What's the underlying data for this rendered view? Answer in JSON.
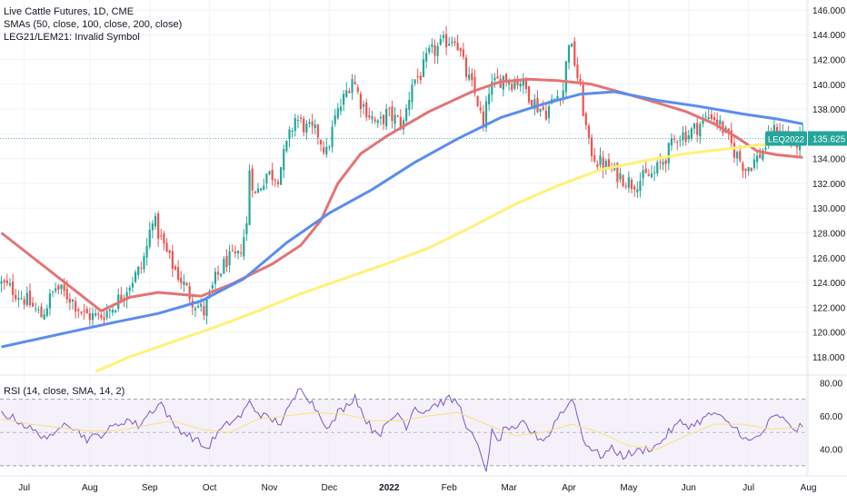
{
  "legend": {
    "title": "Live Cattle Futures, 1D, CME",
    "sma_line": "SMAs (50, close, 100, close, 200, close)",
    "spread_line": "LEG21/LEM21: Invalid Symbol"
  },
  "rsi_legend": "RSI (14, close, SMA, 14, 2)",
  "colors": {
    "up": "#26a69a",
    "down": "#ef5350",
    "sma50": "#e57373",
    "sma100": "#5b8def",
    "sma200": "#fff176",
    "rsi": "#7e57c2",
    "rsi_ma": "#f7e27c",
    "rsi_band": "#ede7f6"
  },
  "chart_data": [
    {
      "type": "candlestick",
      "symbol": "LEQ2022",
      "last_price": "135.625",
      "y_ticks": [
        "146.000",
        "144.000",
        "142.000",
        "140.000",
        "138.000",
        "136.000",
        "134.000",
        "132.000",
        "130.000",
        "128.000",
        "126.000",
        "124.000",
        "122.000",
        "120.000",
        "118.000"
      ],
      "ylim": [
        116.6,
        146.8
      ],
      "x_ticks": [
        "Jul",
        "Aug",
        "Sep",
        "Oct",
        "Nov",
        "Dec",
        "2022",
        "Feb",
        "Mar",
        "Apr",
        "May",
        "Jun",
        "Jul",
        "Aug"
      ],
      "x_tick_bars": [
        8,
        31,
        52,
        73,
        94,
        115,
        136,
        157,
        178,
        199,
        220,
        241,
        262,
        283
      ],
      "bar_count": 283,
      "series": [
        {
          "name": "SMA 50",
          "points": [
            [
              0,
              128.0
            ],
            [
              35,
              121.7
            ],
            [
              45,
              122.8
            ],
            [
              55,
              123.2
            ],
            [
              70,
              122.9
            ],
            [
              80,
              123.8
            ],
            [
              95,
              125.5
            ],
            [
              105,
              127.0
            ],
            [
              112,
              129.0
            ],
            [
              118,
              132.0
            ],
            [
              126,
              134.4
            ],
            [
              135,
              135.8
            ],
            [
              150,
              137.8
            ],
            [
              165,
              139.4
            ],
            [
              175,
              140.2
            ],
            [
              185,
              140.4
            ],
            [
              195,
              140.3
            ],
            [
              207,
              140.0
            ],
            [
              218,
              139.3
            ],
            [
              230,
              138.5
            ],
            [
              240,
              137.8
            ],
            [
              250,
              136.8
            ],
            [
              258,
              135.7
            ],
            [
              265,
              134.6
            ],
            [
              272,
              134.3
            ],
            [
              281,
              134.1
            ]
          ]
        },
        {
          "name": "SMA 100",
          "points": [
            [
              0,
              118.8
            ],
            [
              20,
              119.8
            ],
            [
              40,
              120.8
            ],
            [
              55,
              121.5
            ],
            [
              70,
              122.5
            ],
            [
              85,
              124.3
            ],
            [
              100,
              127.2
            ],
            [
              115,
              129.6
            ],
            [
              130,
              131.5
            ],
            [
              145,
              133.7
            ],
            [
              160,
              135.6
            ],
            [
              175,
              137.3
            ],
            [
              190,
              138.4
            ],
            [
              203,
              139.2
            ],
            [
              215,
              139.4
            ],
            [
              230,
              138.7
            ],
            [
              245,
              138.2
            ],
            [
              260,
              137.6
            ],
            [
              272,
              137.2
            ],
            [
              281,
              136.8
            ]
          ]
        },
        {
          "name": "SMA 200",
          "points": [
            [
              33,
              116.8
            ],
            [
              45,
              118.0
            ],
            [
              60,
              119.2
            ],
            [
              75,
              120.4
            ],
            [
              90,
              121.7
            ],
            [
              105,
              123.1
            ],
            [
              120,
              124.3
            ],
            [
              135,
              125.5
            ],
            [
              150,
              126.8
            ],
            [
              165,
              128.5
            ],
            [
              180,
              130.3
            ],
            [
              195,
              131.8
            ],
            [
              210,
              133.1
            ],
            [
              225,
              133.8
            ],
            [
              240,
              134.4
            ],
            [
              255,
              134.8
            ],
            [
              270,
              135.2
            ],
            [
              281,
              135.6
            ]
          ]
        }
      ],
      "price_path": [
        [
          0,
          124.0
        ],
        [
          5,
          123.4
        ],
        [
          10,
          122.5
        ],
        [
          15,
          121.3
        ],
        [
          20,
          123.6
        ],
        [
          25,
          122.8
        ],
        [
          30,
          121.4
        ],
        [
          35,
          121.2
        ],
        [
          40,
          122.0
        ],
        [
          45,
          123.6
        ],
        [
          50,
          125.2
        ],
        [
          52,
          126.8
        ],
        [
          54,
          129.4
        ],
        [
          56,
          128.0
        ],
        [
          60,
          125.8
        ],
        [
          64,
          124.2
        ],
        [
          68,
          122.6
        ],
        [
          72,
          121.6
        ],
        [
          76,
          124.2
        ],
        [
          80,
          125.8
        ],
        [
          84,
          126.0
        ],
        [
          87,
          128.6
        ],
        [
          88,
          133.2
        ],
        [
          90,
          131.0
        ],
        [
          94,
          132.8
        ],
        [
          98,
          132.6
        ],
        [
          101,
          135.0
        ],
        [
          104,
          137.3
        ],
        [
          108,
          136.4
        ],
        [
          112,
          136.0
        ],
        [
          115,
          134.4
        ],
        [
          118,
          137.2
        ],
        [
          121,
          138.8
        ],
        [
          124,
          140.6
        ],
        [
          127,
          138.6
        ],
        [
          130,
          137.6
        ],
        [
          133,
          136.6
        ],
        [
          136,
          137.6
        ],
        [
          139,
          137.2
        ],
        [
          142,
          136.8
        ],
        [
          145,
          140.2
        ],
        [
          148,
          140.8
        ],
        [
          151,
          142.4
        ],
        [
          154,
          142.9
        ],
        [
          157,
          143.5
        ],
        [
          160,
          143.9
        ],
        [
          162,
          142.4
        ],
        [
          164,
          140.8
        ],
        [
          166,
          139.8
        ],
        [
          168,
          138.6
        ],
        [
          170,
          136.4
        ],
        [
          172,
          139.6
        ],
        [
          174,
          140.0
        ],
        [
          177,
          140.6
        ],
        [
          180,
          140.2
        ],
        [
          183,
          140.3
        ],
        [
          186,
          139.2
        ],
        [
          189,
          138.2
        ],
        [
          192,
          137.8
        ],
        [
          195,
          138.8
        ],
        [
          198,
          139.6
        ],
        [
          200,
          143.6
        ],
        [
          202,
          141.8
        ],
        [
          204,
          139.4
        ],
        [
          207,
          135.0
        ],
        [
          210,
          133.8
        ],
        [
          214,
          133.2
        ],
        [
          218,
          132.6
        ],
        [
          222,
          132.0
        ],
        [
          226,
          132.4
        ],
        [
          230,
          132.8
        ],
        [
          234,
          134.2
        ],
        [
          238,
          135.9
        ],
        [
          242,
          136.0
        ],
        [
          246,
          136.8
        ],
        [
          250,
          137.6
        ],
        [
          254,
          136.4
        ],
        [
          258,
          134.6
        ],
        [
          262,
          133.2
        ],
        [
          266,
          134.0
        ],
        [
          270,
          135.4
        ],
        [
          273,
          136.6
        ],
        [
          276,
          135.8
        ],
        [
          279,
          135.1
        ],
        [
          281,
          135.6
        ]
      ],
      "rsi": {
        "y_ticks": [
          "80.00",
          "60.00",
          "40.00"
        ],
        "ylim": [
          25,
          84
        ],
        "upper_band": 70,
        "lower_band": 30,
        "mid_line": 50,
        "values": [
          [
            0,
            62
          ],
          [
            6,
            57
          ],
          [
            12,
            50
          ],
          [
            18,
            46
          ],
          [
            22,
            58
          ],
          [
            26,
            52
          ],
          [
            30,
            46
          ],
          [
            34,
            48
          ],
          [
            38,
            52
          ],
          [
            44,
            58
          ],
          [
            48,
            54
          ],
          [
            52,
            62
          ],
          [
            56,
            68
          ],
          [
            60,
            55
          ],
          [
            64,
            50
          ],
          [
            68,
            46
          ],
          [
            72,
            40
          ],
          [
            76,
            50
          ],
          [
            80,
            56
          ],
          [
            84,
            60
          ],
          [
            87,
            68
          ],
          [
            90,
            62
          ],
          [
            94,
            58
          ],
          [
            98,
            56
          ],
          [
            102,
            68
          ],
          [
            105,
            78
          ],
          [
            108,
            70
          ],
          [
            112,
            60
          ],
          [
            115,
            52
          ],
          [
            118,
            62
          ],
          [
            121,
            66
          ],
          [
            124,
            72
          ],
          [
            127,
            60
          ],
          [
            130,
            52
          ],
          [
            133,
            50
          ],
          [
            136,
            56
          ],
          [
            139,
            62
          ],
          [
            142,
            54
          ],
          [
            145,
            66
          ],
          [
            148,
            62
          ],
          [
            151,
            66
          ],
          [
            154,
            68
          ],
          [
            157,
            70
          ],
          [
            160,
            68
          ],
          [
            162,
            60
          ],
          [
            164,
            50
          ],
          [
            166,
            46
          ],
          [
            168,
            36
          ],
          [
            170,
            28
          ],
          [
            172,
            50
          ],
          [
            174,
            44
          ],
          [
            177,
            54
          ],
          [
            180,
            50
          ],
          [
            183,
            56
          ],
          [
            186,
            50
          ],
          [
            189,
            46
          ],
          [
            192,
            48
          ],
          [
            195,
            60
          ],
          [
            198,
            64
          ],
          [
            200,
            72
          ],
          [
            202,
            60
          ],
          [
            204,
            46
          ],
          [
            207,
            40
          ],
          [
            210,
            36
          ],
          [
            214,
            40
          ],
          [
            218,
            36
          ],
          [
            222,
            38
          ],
          [
            226,
            40
          ],
          [
            230,
            42
          ],
          [
            234,
            50
          ],
          [
            238,
            56
          ],
          [
            242,
            54
          ],
          [
            246,
            58
          ],
          [
            250,
            62
          ],
          [
            254,
            56
          ],
          [
            258,
            52
          ],
          [
            262,
            44
          ],
          [
            266,
            48
          ],
          [
            270,
            58
          ],
          [
            273,
            60
          ],
          [
            276,
            54
          ],
          [
            279,
            52
          ],
          [
            281,
            55
          ]
        ],
        "ma": [
          [
            0,
            58
          ],
          [
            10,
            55
          ],
          [
            20,
            53
          ],
          [
            30,
            51
          ],
          [
            40,
            51
          ],
          [
            50,
            54
          ],
          [
            60,
            57
          ],
          [
            70,
            52
          ],
          [
            80,
            50
          ],
          [
            90,
            58
          ],
          [
            100,
            60
          ],
          [
            110,
            62
          ],
          [
            120,
            61
          ],
          [
            130,
            57
          ],
          [
            140,
            57
          ],
          [
            150,
            60
          ],
          [
            160,
            62
          ],
          [
            170,
            55
          ],
          [
            180,
            48
          ],
          [
            190,
            50
          ],
          [
            200,
            55
          ],
          [
            210,
            50
          ],
          [
            220,
            42
          ],
          [
            230,
            40
          ],
          [
            240,
            48
          ],
          [
            250,
            55
          ],
          [
            260,
            55
          ],
          [
            270,
            52
          ],
          [
            281,
            53
          ]
        ]
      }
    }
  ]
}
